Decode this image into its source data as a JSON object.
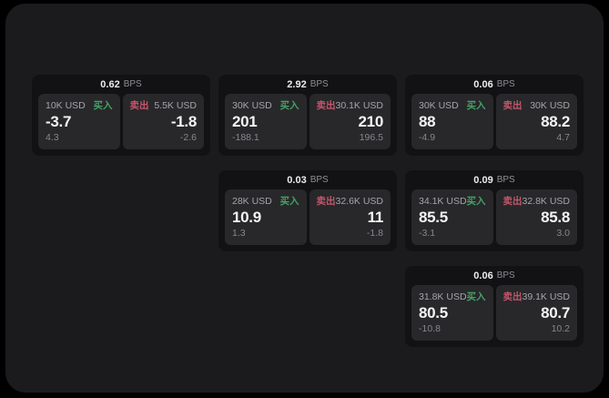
{
  "window": {
    "background": "#000000",
    "panel_background": "#1b1b1d"
  },
  "labels": {
    "bps_suffix": "BPS",
    "buy": "买入",
    "sell": "卖出"
  },
  "colors": {
    "buy_text": "#45a164",
    "sell_text": "#c4566a",
    "value_text": "#f4f4f4",
    "muted_text": "#87878c",
    "card_background": "#121214",
    "subcard_background": "#28282b"
  },
  "cards": [
    {
      "col": 1,
      "row": 1,
      "bps": "0.62",
      "buy": {
        "amount": "10K USD",
        "value": "-3.7",
        "change": "4.3"
      },
      "sell": {
        "amount": "5.5K USD",
        "value": "-1.8",
        "change": "-2.6"
      }
    },
    {
      "col": 2,
      "row": 1,
      "bps": "2.92",
      "buy": {
        "amount": "30K USD",
        "value": "201",
        "change": "-188.1"
      },
      "sell": {
        "amount": "30.1K USD",
        "value": "210",
        "change": "196.5"
      }
    },
    {
      "col": 3,
      "row": 1,
      "bps": "0.06",
      "buy": {
        "amount": "30K USD",
        "value": "88",
        "change": "-4.9"
      },
      "sell": {
        "amount": "30K USD",
        "value": "88.2",
        "change": "4.7"
      }
    },
    {
      "col": 2,
      "row": 2,
      "bps": "0.03",
      "buy": {
        "amount": "28K USD",
        "value": "10.9",
        "change": "1.3"
      },
      "sell": {
        "amount": "32.6K USD",
        "value": "11",
        "change": "-1.8"
      }
    },
    {
      "col": 3,
      "row": 2,
      "bps": "0.09",
      "buy": {
        "amount": "34.1K USD",
        "value": "85.5",
        "change": "-3.1"
      },
      "sell": {
        "amount": "32.8K USD",
        "value": "85.8",
        "change": "3.0"
      }
    },
    {
      "col": 3,
      "row": 3,
      "bps": "0.06",
      "buy": {
        "amount": "31.8K USD",
        "value": "80.5",
        "change": "-10.8"
      },
      "sell": {
        "amount": "39.1K USD",
        "value": "80.7",
        "change": "10.2"
      }
    }
  ]
}
